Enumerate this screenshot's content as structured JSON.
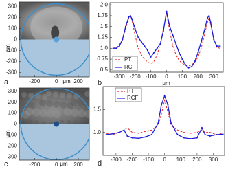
{
  "chart_data": [
    {
      "type": "image",
      "label": "a",
      "xlabel": "μm",
      "ylabel": "μm",
      "xlim": [
        -340,
        300
      ],
      "ylim": [
        -340,
        340
      ],
      "xticks": [
        -200,
        0,
        200
      ],
      "yticks": [
        300,
        200,
        100,
        0,
        -100,
        -200,
        -300
      ]
    },
    {
      "type": "line",
      "label": "b",
      "xlabel": "μm",
      "xlim": [
        -360,
        360
      ],
      "ylim": [
        0.45,
        2.05
      ],
      "xticks": [
        -300,
        -200,
        -100,
        0,
        100,
        200,
        300
      ],
      "yticks": [
        {
          "value": 2.0,
          "label": "2.0"
        },
        1.75,
        {
          "value": 1.5,
          "label": "1.5"
        },
        1.25,
        {
          "value": 1.0,
          "label": "1.0"
        },
        0.75,
        0.5
      ],
      "x": [
        -340,
        -320,
        -300,
        -280,
        -260,
        -240,
        -230,
        -220,
        -200,
        -180,
        -160,
        -140,
        -120,
        -100,
        -80,
        -60,
        -40,
        -20,
        0,
        20,
        40,
        60,
        80,
        100,
        120,
        140,
        160,
        180,
        200,
        220,
        240,
        260,
        270,
        280,
        300,
        320,
        340
      ],
      "series": [
        {
          "name": "PT",
          "color": "#e0201b",
          "dashed": true,
          "values": [
            1.0,
            1.02,
            1.08,
            1.2,
            1.45,
            1.7,
            1.75,
            1.65,
            1.3,
            1.0,
            0.85,
            0.75,
            0.68,
            0.65,
            0.7,
            0.85,
            1.1,
            1.45,
            1.8,
            1.4,
            1.05,
            0.85,
            0.72,
            0.65,
            0.62,
            0.6,
            0.62,
            0.68,
            0.8,
            1.0,
            1.3,
            1.6,
            1.7,
            1.55,
            1.2,
            1.02,
            1.0
          ]
        },
        {
          "name": "RCF",
          "color": "#1a1adb",
          "dashed": false,
          "values": [
            1.0,
            1.0,
            1.05,
            1.2,
            1.5,
            1.72,
            1.75,
            1.68,
            1.45,
            1.25,
            1.15,
            1.05,
            0.95,
            0.8,
            0.9,
            1.0,
            1.1,
            1.4,
            1.85,
            1.5,
            1.3,
            1.1,
            0.9,
            0.75,
            0.62,
            0.55,
            0.58,
            0.7,
            0.9,
            1.15,
            1.4,
            1.7,
            1.75,
            1.6,
            1.2,
            1.05,
            1.05
          ]
        }
      ]
    },
    {
      "type": "image",
      "label": "c",
      "xlabel": "μm",
      "ylabel": "μm",
      "xlim": [
        -340,
        300
      ],
      "ylim": [
        -330,
        330
      ],
      "xticks": [
        -200,
        0,
        200
      ],
      "yticks": [
        300,
        200,
        100,
        0,
        -100,
        -200,
        -300
      ]
    },
    {
      "type": "line",
      "label": "d",
      "xlim": [
        -380,
        370
      ],
      "ylim": [
        0.5,
        2.0
      ],
      "xticks": [
        -300,
        -200,
        -100,
        0,
        100,
        200,
        300
      ],
      "yticks": [
        {
          "value": 1.5,
          "label": "1.5"
        },
        {
          "value": 1.0,
          "label": "1.0"
        }
      ],
      "x": [
        -360,
        -320,
        -280,
        -250,
        -230,
        -200,
        -160,
        -120,
        -80,
        -40,
        -20,
        0,
        20,
        40,
        80,
        120,
        160,
        200,
        230,
        250,
        280,
        320,
        360
      ],
      "series": [
        {
          "name": "PT",
          "color": "#e0201b",
          "dashed": true,
          "values": [
            0.98,
            0.95,
            1.0,
            1.05,
            1.1,
            1.0,
            0.98,
            1.02,
            1.05,
            1.15,
            1.4,
            1.7,
            1.45,
            1.15,
            1.05,
            1.0,
            0.98,
            1.0,
            1.05,
            1.0,
            1.0,
            0.95,
            0.98
          ]
        },
        {
          "name": "RCF",
          "color": "#1a1adb",
          "dashed": false,
          "values": [
            0.95,
            0.97,
            1.0,
            1.05,
            0.92,
            0.88,
            0.87,
            0.9,
            0.95,
            1.2,
            1.6,
            1.8,
            1.6,
            1.2,
            0.95,
            0.88,
            0.86,
            0.88,
            1.1,
            0.95,
            0.92,
            0.95,
            0.96
          ]
        }
      ]
    }
  ]
}
